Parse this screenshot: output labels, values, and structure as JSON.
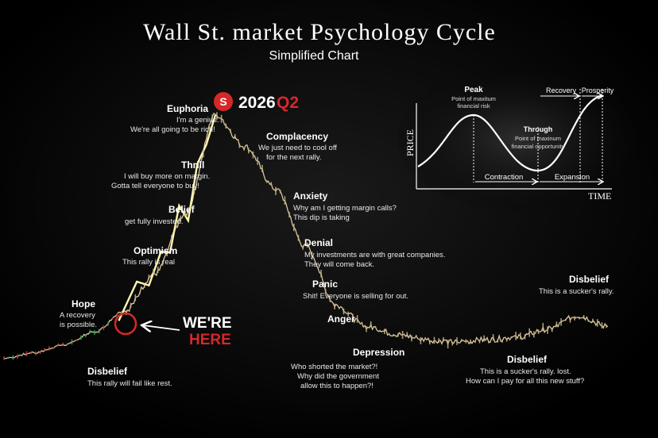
{
  "title": "Wall St. market Psychology Cycle",
  "subtitle": "Simplified Chart",
  "badge": {
    "icon": "s-logo-icon",
    "icon_letter": "S",
    "year": "2026",
    "quarter": "Q2"
  },
  "marker": {
    "line1": "WE'RE",
    "line2": "HERE"
  },
  "colors": {
    "background": "#000000",
    "price_line": "#d8c7a0",
    "highlight_line": "#fff6b0",
    "accent_red": "#d62828",
    "text": "#ffffff"
  },
  "stages": [
    {
      "id": "disbelief-start",
      "label": "Disbelief",
      "quote": [
        "This rally will fail like rest."
      ]
    },
    {
      "id": "hope",
      "label": "Hope",
      "quote": [
        "A recovery",
        "is possible."
      ]
    },
    {
      "id": "optimism",
      "label": "Optimism",
      "quote": [
        "This rally is real"
      ]
    },
    {
      "id": "belief",
      "label": "Belief",
      "quote": [
        "get fully invested."
      ]
    },
    {
      "id": "thrill",
      "label": "Thrill",
      "quote": [
        "I will buy more on margin.",
        "Gotta tell everyone to buy!"
      ]
    },
    {
      "id": "euphoria",
      "label": "Euphoria",
      "quote": [
        "I'm a genius.",
        "We're all going to be rich!"
      ]
    },
    {
      "id": "complacency",
      "label": "Complacency",
      "quote": [
        "We just need to cool off",
        "for the next rally."
      ]
    },
    {
      "id": "anxiety",
      "label": "Anxiety",
      "quote": [
        "Why am I getting margin calls?",
        "This dip is taking"
      ]
    },
    {
      "id": "denial",
      "label": "Denial",
      "quote": [
        "My investments are with great companies.",
        "They will come back."
      ]
    },
    {
      "id": "panic",
      "label": "Panic",
      "quote": [
        "Shit! Everyone is selling for out."
      ]
    },
    {
      "id": "anger",
      "label": "Anger",
      "quote": []
    },
    {
      "id": "depression",
      "label": "Depression",
      "quote": [
        "Who shorted the market?!",
        "Why did the government",
        "allow this to happen?!"
      ]
    },
    {
      "id": "disbelief-trough",
      "label": "Disbelief",
      "quote": [
        "This is a sucker's  rally. lost.",
        "How can I pay for all this new stuff?"
      ]
    },
    {
      "id": "disbelief-end",
      "label": "Disbelief",
      "quote": [
        "This is a sucker's rally."
      ]
    }
  ],
  "inset": {
    "ylabel": "PRICE",
    "xlabel": "TIME",
    "peak": {
      "label": "Peak",
      "note": [
        "Point of maxitum",
        "financial risk"
      ]
    },
    "trough": {
      "label": "Through",
      "note": [
        "Point of maxinum",
        "financial opportunity"
      ]
    },
    "phases": {
      "contraction": "Contraction",
      "expansion": "Expansion",
      "recovery": "Recovery",
      "prosperity": "Prosperity"
    }
  },
  "chart_data": {
    "type": "line",
    "xlabel": "",
    "ylabel": "",
    "grid": false,
    "legend": "none",
    "x": [
      0,
      5,
      10,
      15,
      20,
      25,
      30,
      35,
      40,
      45,
      50,
      55,
      60,
      65,
      70,
      75,
      80,
      85,
      90,
      95,
      100
    ],
    "series": [
      {
        "values": [
          8,
          10,
          13,
          18,
          26,
          40,
          62,
          100,
          88,
          72,
          50,
          28,
          20,
          17,
          15,
          14,
          15,
          16,
          19,
          24,
          20
        ]
      }
    ],
    "current_position_x": 19
  }
}
